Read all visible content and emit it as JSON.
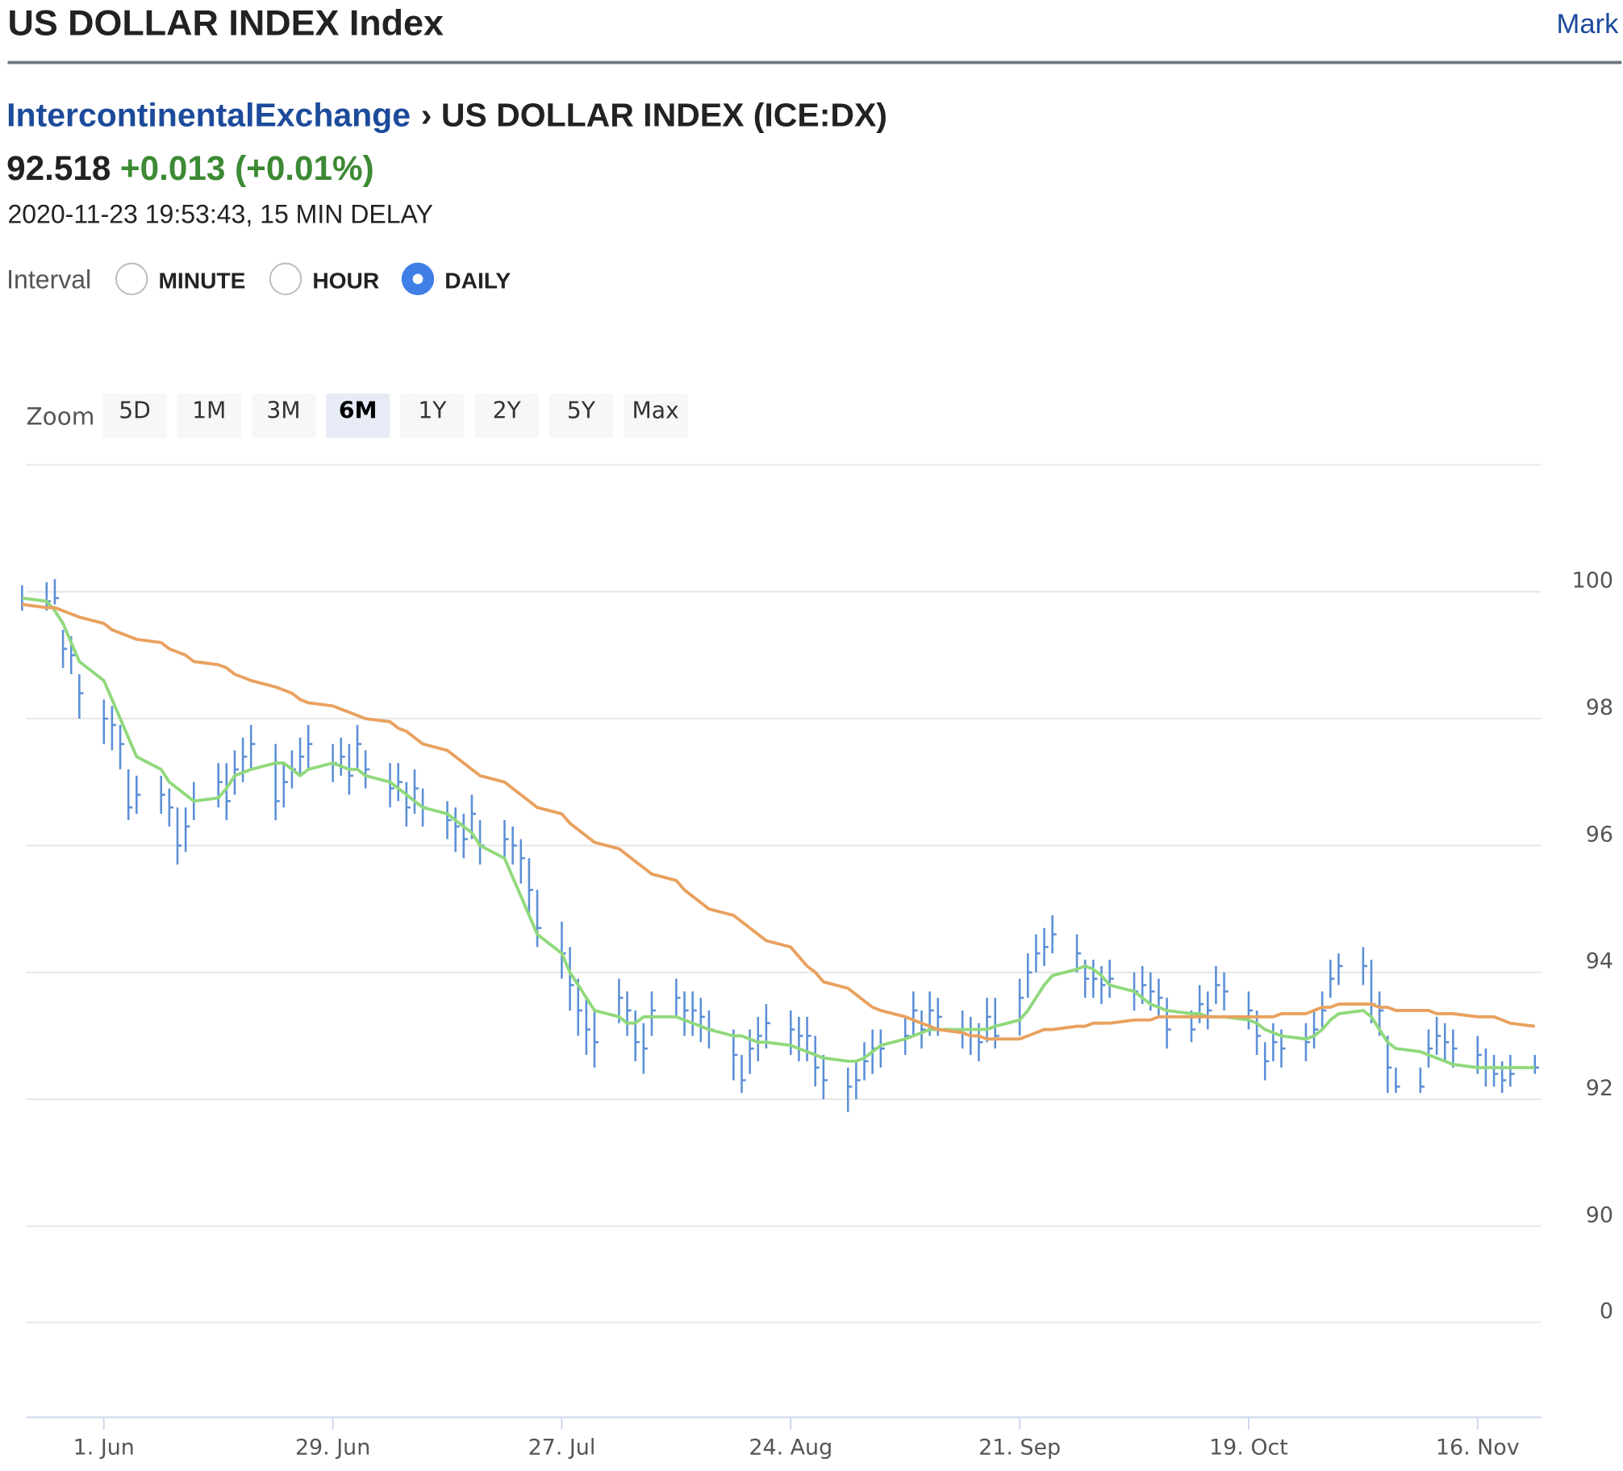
{
  "header": {
    "title": "US DOLLAR INDEX Index",
    "nav_link": "Mark"
  },
  "breadcrumb": {
    "exchange": "IntercontinentalExchange",
    "instrument": "› US DOLLAR INDEX (ICE:DX)"
  },
  "quote": {
    "price": "92.518",
    "change": "+0.013 (+0.01%)",
    "timestamp": "2020-11-23 19:53:43, 15 MIN DELAY"
  },
  "interval": {
    "label": "Interval",
    "options": [
      "MINUTE",
      "HOUR",
      "DAILY"
    ],
    "selected": 2
  },
  "zoom": {
    "label": "Zoom",
    "options": [
      "5D",
      "1M",
      "3M",
      "6M",
      "1Y",
      "2Y",
      "5Y",
      "Max"
    ],
    "selected": 3
  },
  "chart_data": {
    "type": "ohlc",
    "bar_color": "#5b8fd6",
    "x": [
      "2020-05-22",
      "2020-05-25",
      "2020-05-26",
      "2020-05-27",
      "2020-05-28",
      "2020-05-29",
      "2020-06-01",
      "2020-06-02",
      "2020-06-03",
      "2020-06-04",
      "2020-06-05",
      "2020-06-08",
      "2020-06-09",
      "2020-06-10",
      "2020-06-11",
      "2020-06-12",
      "2020-06-15",
      "2020-06-16",
      "2020-06-17",
      "2020-06-18",
      "2020-06-19",
      "2020-06-22",
      "2020-06-23",
      "2020-06-24",
      "2020-06-25",
      "2020-06-26",
      "2020-06-29",
      "2020-06-30",
      "2020-07-01",
      "2020-07-02",
      "2020-07-03",
      "2020-07-06",
      "2020-07-07",
      "2020-07-08",
      "2020-07-09",
      "2020-07-10",
      "2020-07-13",
      "2020-07-14",
      "2020-07-15",
      "2020-07-16",
      "2020-07-17",
      "2020-07-20",
      "2020-07-21",
      "2020-07-22",
      "2020-07-23",
      "2020-07-24",
      "2020-07-27",
      "2020-07-28",
      "2020-07-29",
      "2020-07-30",
      "2020-07-31",
      "2020-08-03",
      "2020-08-04",
      "2020-08-05",
      "2020-08-06",
      "2020-08-07",
      "2020-08-10",
      "2020-08-11",
      "2020-08-12",
      "2020-08-13",
      "2020-08-14",
      "2020-08-17",
      "2020-08-18",
      "2020-08-19",
      "2020-08-20",
      "2020-08-21",
      "2020-08-24",
      "2020-08-25",
      "2020-08-26",
      "2020-08-27",
      "2020-08-28",
      "2020-08-31",
      "2020-09-01",
      "2020-09-02",
      "2020-09-03",
      "2020-09-04",
      "2020-09-07",
      "2020-09-08",
      "2020-09-09",
      "2020-09-10",
      "2020-09-11",
      "2020-09-14",
      "2020-09-15",
      "2020-09-16",
      "2020-09-17",
      "2020-09-18",
      "2020-09-21",
      "2020-09-22",
      "2020-09-23",
      "2020-09-24",
      "2020-09-25",
      "2020-09-28",
      "2020-09-29",
      "2020-09-30",
      "2020-10-01",
      "2020-10-02",
      "2020-10-05",
      "2020-10-06",
      "2020-10-07",
      "2020-10-08",
      "2020-10-09",
      "2020-10-12",
      "2020-10-13",
      "2020-10-14",
      "2020-10-15",
      "2020-10-16",
      "2020-10-19",
      "2020-10-20",
      "2020-10-21",
      "2020-10-22",
      "2020-10-23",
      "2020-10-26",
      "2020-10-27",
      "2020-10-28",
      "2020-10-29",
      "2020-10-30",
      "2020-11-02",
      "2020-11-03",
      "2020-11-04",
      "2020-11-05",
      "2020-11-06",
      "2020-11-09",
      "2020-11-10",
      "2020-11-11",
      "2020-11-12",
      "2020-11-13",
      "2020-11-16",
      "2020-11-17",
      "2020-11-18",
      "2020-11-19",
      "2020-11-20",
      "2020-11-23"
    ],
    "high": [
      100.1,
      100.15,
      100.2,
      99.4,
      99.3,
      98.7,
      98.3,
      98.2,
      97.9,
      97.2,
      97.1,
      97.1,
      96.9,
      96.6,
      96.6,
      97.0,
      97.3,
      97.3,
      97.5,
      97.7,
      97.9,
      97.6,
      97.3,
      97.5,
      97.7,
      97.9,
      97.6,
      97.7,
      97.6,
      97.9,
      97.5,
      97.3,
      97.3,
      97.0,
      97.2,
      96.9,
      96.7,
      96.6,
      96.5,
      96.8,
      96.4,
      96.4,
      96.3,
      96.1,
      95.8,
      95.3,
      94.8,
      94.4,
      93.9,
      93.6,
      93.4,
      93.9,
      93.7,
      93.4,
      93.2,
      93.7,
      93.9,
      93.7,
      93.7,
      93.6,
      93.4,
      93.1,
      92.7,
      93.1,
      93.3,
      93.5,
      93.4,
      93.3,
      93.3,
      93.0,
      92.7,
      92.5,
      92.6,
      92.9,
      93.1,
      93.1,
      93.3,
      93.7,
      93.4,
      93.7,
      93.6,
      93.4,
      93.3,
      93.2,
      93.6,
      93.6,
      93.9,
      94.3,
      94.6,
      94.7,
      94.9,
      94.6,
      94.2,
      94.2,
      94.1,
      94.2,
      94.0,
      94.1,
      94.0,
      93.9,
      93.6,
      93.4,
      93.8,
      93.7,
      94.1,
      94.0,
      93.7,
      93.4,
      92.9,
      93.2,
      93.1,
      93.2,
      93.4,
      93.7,
      94.2,
      94.3,
      94.4,
      94.2,
      93.7,
      93.0,
      92.5,
      92.5,
      93.1,
      93.3,
      93.2,
      93.1,
      93.0,
      92.8,
      92.7,
      92.6,
      92.7,
      92.7
    ],
    "low": [
      99.7,
      99.7,
      99.8,
      98.8,
      98.7,
      98.0,
      97.6,
      97.5,
      97.2,
      96.4,
      96.5,
      96.5,
      96.3,
      95.7,
      95.9,
      96.4,
      96.6,
      96.4,
      96.8,
      97.0,
      97.2,
      96.4,
      96.6,
      96.9,
      97.1,
      97.2,
      97.0,
      97.1,
      96.8,
      97.2,
      96.9,
      96.6,
      96.7,
      96.3,
      96.5,
      96.3,
      96.1,
      95.9,
      95.8,
      96.1,
      95.7,
      95.8,
      95.7,
      95.4,
      94.9,
      94.4,
      93.9,
      93.4,
      93.0,
      92.7,
      92.5,
      93.2,
      93.0,
      92.6,
      92.4,
      93.0,
      93.3,
      93.0,
      93.0,
      92.9,
      92.8,
      92.3,
      92.1,
      92.4,
      92.6,
      92.8,
      92.7,
      92.6,
      92.6,
      92.2,
      92.0,
      91.8,
      92.0,
      92.3,
      92.4,
      92.5,
      92.7,
      93.0,
      92.8,
      93.0,
      93.0,
      92.8,
      92.7,
      92.6,
      92.9,
      92.8,
      93.0,
      93.6,
      94.0,
      94.1,
      94.3,
      94.0,
      93.6,
      93.6,
      93.5,
      93.6,
      93.4,
      93.5,
      93.4,
      93.3,
      92.8,
      92.9,
      93.2,
      93.1,
      93.5,
      93.4,
      93.1,
      92.7,
      92.3,
      92.6,
      92.5,
      92.6,
      92.8,
      93.1,
      93.6,
      93.8,
      93.8,
      93.2,
      93.0,
      92.1,
      92.1,
      92.1,
      92.5,
      92.7,
      92.6,
      92.5,
      92.4,
      92.2,
      92.2,
      92.1,
      92.2,
      92.4
    ],
    "close": [
      99.8,
      99.85,
      99.9,
      99.1,
      99.0,
      98.4,
      98.0,
      97.9,
      97.6,
      96.6,
      96.8,
      96.8,
      96.6,
      96.0,
      96.3,
      96.7,
      97.0,
      96.7,
      97.2,
      97.4,
      97.6,
      96.7,
      97.0,
      97.2,
      97.4,
      97.6,
      97.3,
      97.4,
      97.1,
      97.6,
      97.2,
      96.9,
      97.0,
      96.6,
      96.9,
      96.6,
      96.4,
      96.3,
      96.1,
      96.5,
      96.0,
      96.1,
      96.0,
      95.8,
      95.3,
      94.7,
      94.3,
      93.8,
      93.4,
      93.1,
      92.9,
      93.6,
      93.4,
      92.9,
      92.8,
      93.4,
      93.6,
      93.4,
      93.4,
      93.3,
      93.1,
      92.7,
      92.3,
      92.8,
      93.0,
      93.2,
      93.1,
      93.0,
      93.0,
      92.5,
      92.3,
      92.2,
      92.3,
      92.6,
      92.8,
      92.8,
      93.0,
      93.4,
      93.1,
      93.4,
      93.3,
      93.1,
      93.0,
      92.9,
      93.3,
      93.0,
      93.6,
      94.0,
      94.3,
      94.4,
      94.6,
      94.3,
      93.9,
      93.9,
      93.8,
      93.9,
      93.7,
      93.8,
      93.7,
      93.6,
      93.1,
      93.1,
      93.5,
      93.4,
      93.8,
      93.7,
      93.4,
      93.0,
      92.6,
      92.9,
      92.8,
      92.9,
      93.1,
      93.4,
      93.9,
      94.1,
      94.1,
      93.5,
      93.4,
      92.5,
      92.2,
      92.2,
      92.8,
      93.0,
      92.9,
      92.8,
      92.7,
      92.5,
      92.4,
      92.3,
      92.4,
      92.5
    ],
    "series": [
      {
        "color": "#90d97c",
        "values": [
          99.9,
          99.85,
          99.7,
          99.5,
          99.2,
          98.9,
          98.6,
          98.3,
          98.0,
          97.7,
          97.4,
          97.2,
          97.0,
          96.9,
          96.8,
          96.7,
          96.75,
          96.9,
          97.1,
          97.15,
          97.2,
          97.3,
          97.3,
          97.2,
          97.1,
          97.2,
          97.3,
          97.25,
          97.2,
          97.2,
          97.1,
          97.0,
          96.9,
          96.8,
          96.7,
          96.6,
          96.5,
          96.4,
          96.3,
          96.2,
          96.0,
          95.8,
          95.5,
          95.2,
          94.9,
          94.6,
          94.3,
          94.0,
          93.8,
          93.6,
          93.4,
          93.3,
          93.2,
          93.2,
          93.3,
          93.3,
          93.3,
          93.25,
          93.2,
          93.15,
          93.1,
          93.0,
          93.0,
          92.95,
          92.9,
          92.9,
          92.85,
          92.8,
          92.75,
          92.7,
          92.65,
          92.6,
          92.6,
          92.65,
          92.75,
          92.85,
          92.95,
          93.0,
          93.05,
          93.1,
          93.1,
          93.1,
          93.1,
          93.1,
          93.1,
          93.15,
          93.25,
          93.4,
          93.6,
          93.8,
          93.95,
          94.05,
          94.1,
          94.05,
          93.95,
          93.8,
          93.7,
          93.6,
          93.5,
          93.45,
          93.4,
          93.35,
          93.35,
          93.3,
          93.3,
          93.3,
          93.25,
          93.2,
          93.1,
          93.05,
          93.0,
          92.95,
          93.0,
          93.1,
          93.25,
          93.35,
          93.4,
          93.3,
          93.1,
          92.9,
          92.8,
          92.75,
          92.7,
          92.65,
          92.6,
          92.55,
          92.5,
          92.5,
          92.5,
          92.5,
          92.5,
          92.5
        ]
      },
      {
        "color": "#e9a15f",
        "values": [
          99.8,
          99.75,
          99.75,
          99.7,
          99.65,
          99.6,
          99.5,
          99.4,
          99.35,
          99.3,
          99.25,
          99.2,
          99.1,
          99.05,
          99.0,
          98.9,
          98.85,
          98.8,
          98.7,
          98.65,
          98.6,
          98.5,
          98.45,
          98.4,
          98.3,
          98.25,
          98.2,
          98.15,
          98.1,
          98.05,
          98.0,
          97.95,
          97.85,
          97.8,
          97.7,
          97.6,
          97.5,
          97.4,
          97.3,
          97.2,
          97.1,
          97.0,
          96.9,
          96.8,
          96.7,
          96.6,
          96.5,
          96.35,
          96.25,
          96.15,
          96.05,
          95.95,
          95.85,
          95.75,
          95.65,
          95.55,
          95.45,
          95.3,
          95.2,
          95.1,
          95.0,
          94.9,
          94.8,
          94.7,
          94.6,
          94.5,
          94.4,
          94.25,
          94.1,
          94.0,
          93.85,
          93.75,
          93.65,
          93.55,
          93.45,
          93.4,
          93.3,
          93.25,
          93.2,
          93.15,
          93.1,
          93.05,
          93.0,
          93.0,
          92.95,
          92.95,
          92.95,
          93.0,
          93.05,
          93.1,
          93.1,
          93.15,
          93.15,
          93.2,
          93.2,
          93.2,
          93.25,
          93.25,
          93.25,
          93.3,
          93.3,
          93.3,
          93.3,
          93.3,
          93.3,
          93.3,
          93.3,
          93.3,
          93.3,
          93.3,
          93.35,
          93.35,
          93.4,
          93.45,
          93.45,
          93.5,
          93.5,
          93.5,
          93.45,
          93.45,
          93.4,
          93.4,
          93.4,
          93.35,
          93.35,
          93.35,
          93.3,
          93.3,
          93.3,
          93.25,
          93.2,
          93.15
        ]
      }
    ],
    "xlim": [
      "2020-05-22",
      "2020-11-24"
    ],
    "xticks": [
      {
        "value": "2020-06-01",
        "label": "1. Jun"
      },
      {
        "value": "2020-06-29",
        "label": "29. Jun"
      },
      {
        "value": "2020-07-27",
        "label": "27. Jul"
      },
      {
        "value": "2020-08-24",
        "label": "24. Aug"
      },
      {
        "value": "2020-09-21",
        "label": "21. Sep"
      },
      {
        "value": "2020-10-19",
        "label": "19. Oct"
      },
      {
        "value": "2020-11-16",
        "label": "16. Nov"
      }
    ],
    "ylim": [
      90,
      102
    ],
    "yticks": [
      90,
      92,
      94,
      96,
      98,
      100
    ],
    "y2ticks": [
      0
    ],
    "grid": true
  }
}
